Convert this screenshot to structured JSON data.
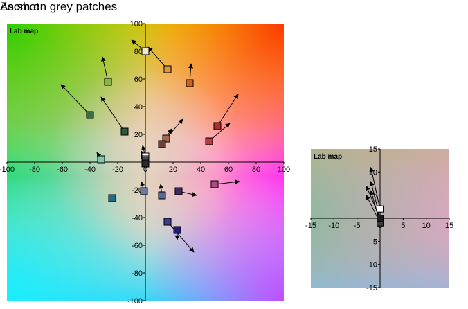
{
  "chart_data": [
    {
      "type": "scatter",
      "title": "As shot",
      "map_label": "Lab map",
      "xlabel": "",
      "ylabel": "",
      "xlim": [
        -100,
        100
      ],
      "ylim": [
        -100,
        100
      ],
      "x_ticks": [
        -100,
        -80,
        -60,
        -40,
        -20,
        0,
        20,
        40,
        60,
        80,
        100
      ],
      "y_ticks": [
        100,
        80,
        60,
        40,
        20,
        -20,
        -40,
        -60,
        -80,
        -100
      ],
      "grid": false,
      "legend": "none",
      "points": [
        {
          "a": 0,
          "b": 80,
          "to_a": -10,
          "to_b": 88,
          "color": "#f2e6c8"
        },
        {
          "a": 16,
          "b": 67,
          "to_a": 2,
          "to_b": 83,
          "color": "#e0963c"
        },
        {
          "a": -27,
          "b": 58,
          "to_a": -31,
          "to_b": 76,
          "color": "#8ab648"
        },
        {
          "a": 32,
          "b": 57,
          "to_a": 33,
          "to_b": 71,
          "color": "#c8641e"
        },
        {
          "a": -40,
          "b": 34,
          "to_a": -61,
          "to_b": 56,
          "color": "#3c6e46"
        },
        {
          "a": -15,
          "b": 22,
          "to_a": -32,
          "to_b": 47,
          "color": "#2e5a3a"
        },
        {
          "a": 52,
          "b": 26,
          "to_a": 67,
          "to_b": 49,
          "color": "#b42a32"
        },
        {
          "a": 46,
          "b": 15,
          "to_a": 61,
          "to_b": 28,
          "color": "#b83a48"
        },
        {
          "a": 15,
          "b": 17,
          "to_a": 27,
          "to_b": 31,
          "color": "#a86450"
        },
        {
          "a": 12,
          "b": 13,
          "to_a": 19,
          "to_b": 24,
          "color": "#6e4232"
        },
        {
          "a": -32,
          "b": 2,
          "to_a": -35,
          "to_b": 7,
          "color": "#80c8b4"
        },
        {
          "a": 0,
          "b": 4,
          "to_a": -2,
          "to_b": 12,
          "color": "#ffffff"
        },
        {
          "a": 0,
          "b": 2,
          "to_a": -3,
          "to_b": 8,
          "color": "#bdbdbd"
        },
        {
          "a": 0,
          "b": 1,
          "to_a": -3,
          "to_b": 7,
          "color": "#8c8c8c"
        },
        {
          "a": 0,
          "b": 0,
          "to_a": -3,
          "to_b": 6,
          "color": "#555555"
        },
        {
          "a": 0,
          "b": -1,
          "to_a": -2,
          "to_b": 5,
          "color": "#2a2a2a"
        },
        {
          "a": 50,
          "b": -16,
          "to_a": 68,
          "to_b": -14,
          "color": "#b04a88"
        },
        {
          "a": -1,
          "b": -21,
          "to_a": -3,
          "to_b": -14,
          "color": "#6a7aa8"
        },
        {
          "a": 12,
          "b": -24,
          "to_a": 11,
          "to_b": -16,
          "color": "#5a6898"
        },
        {
          "a": 24,
          "b": -21,
          "to_a": 37,
          "to_b": -24,
          "color": "#3e2c5c"
        },
        {
          "a": -24,
          "b": -26,
          "to_a": -24,
          "to_b": -26,
          "color": "#1e6e8a"
        },
        {
          "a": 16,
          "b": -43,
          "to_a": 35,
          "to_b": -65,
          "color": "#3a3e8c"
        },
        {
          "a": 23,
          "b": -49,
          "to_a": 23,
          "to_b": -56,
          "color": "#1e1e7a"
        }
      ]
    },
    {
      "type": "scatter",
      "title": "Zoom on grey patches",
      "map_label": "Lab map",
      "xlabel": "",
      "ylabel": "",
      "xlim": [
        -15,
        15
      ],
      "ylim": [
        -15,
        15
      ],
      "x_ticks": [
        -15,
        -10,
        -5,
        0,
        5,
        10,
        15
      ],
      "y_ticks": [
        15,
        10,
        5,
        -5,
        -10,
        -15
      ],
      "grid": false,
      "legend": "none",
      "points": [
        {
          "a": 0,
          "b": 2,
          "to_a": -2,
          "to_b": 11,
          "color": "#ffffff"
        },
        {
          "a": 0,
          "b": 0,
          "to_a": -2,
          "to_b": 8,
          "color": "#d0d0d0"
        },
        {
          "a": 0,
          "b": 0,
          "to_a": -3,
          "to_b": 7,
          "color": "#a0a0a0"
        },
        {
          "a": 0,
          "b": -1,
          "to_a": -2,
          "to_b": 6,
          "color": "#6a6a6a"
        },
        {
          "a": 0,
          "b": -1,
          "to_a": -3,
          "to_b": 5,
          "color": "#3a3a3a"
        },
        {
          "a": 0,
          "b": 0,
          "to_a": 0,
          "to_b": 0,
          "color": "#1c1c1c"
        }
      ]
    }
  ]
}
